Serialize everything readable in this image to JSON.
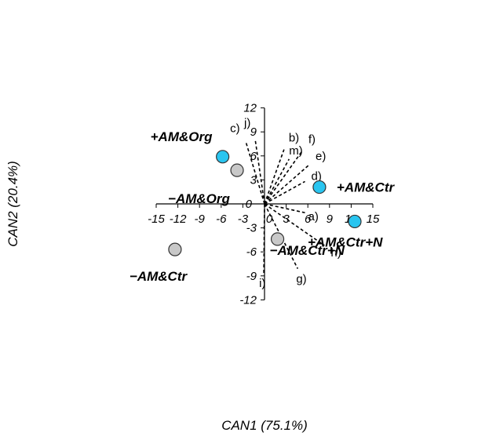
{
  "chart_data": {
    "type": "scatter",
    "xlabel": "CAN1 (75.1%)",
    "ylabel": "CAN2 (20.4%)",
    "xlim": [
      -15,
      15
    ],
    "ylim": [
      -12,
      12
    ],
    "xticks": [
      -15,
      -12,
      -9,
      -6,
      -3,
      0,
      3,
      6,
      9,
      12,
      15
    ],
    "yticks": [
      -12,
      -9,
      -6,
      -3,
      0,
      3,
      6,
      9,
      12
    ],
    "grid": false,
    "points": [
      {
        "label": "+AM&Org",
        "x": -5.8,
        "y": 5.9,
        "xerr": 0.4,
        "yerr": 0.3,
        "color": "#29c5f0"
      },
      {
        "label": "−AM&Org",
        "x": -3.8,
        "y": 4.2,
        "xerr": 0.5,
        "yerr": 0.6,
        "color": "#c8c8c8"
      },
      {
        "label": "+AM&Ctr",
        "x": 7.6,
        "y": 2.1,
        "xerr": 0.5,
        "yerr": 0.3,
        "color": "#29c5f0"
      },
      {
        "label": "+AM&Ctr+N",
        "x": 12.5,
        "y": -2.2,
        "xerr": 0.7,
        "yerr": 0.4,
        "color": "#29c5f0"
      },
      {
        "label": "−AM&Ctr+N",
        "x": 1.8,
        "y": -4.4,
        "xerr": 0.4,
        "yerr": 0.3,
        "color": "#c8c8c8"
      },
      {
        "label": "−AM&Ctr",
        "x": -12.4,
        "y": -5.7,
        "xerr": 0.4,
        "yerr": 0.7,
        "color": "#c8c8c8"
      }
    ],
    "vectors": [
      {
        "label": "a)",
        "x": 5.6,
        "y": -1.1
      },
      {
        "label": "b)",
        "x": 2.7,
        "y": 6.8
      },
      {
        "label": "c)",
        "x": -2.6,
        "y": 7.8
      },
      {
        "label": "d)",
        "x": 5.6,
        "y": 2.8
      },
      {
        "label": "e)",
        "x": 6.2,
        "y": 4.9
      },
      {
        "label": "f)",
        "x": 5.2,
        "y": 6.6
      },
      {
        "label": "g)",
        "x": 4.6,
        "y": -8.1
      },
      {
        "label": "h)",
        "x": 8.3,
        "y": -5.2
      },
      {
        "label": "i)",
        "x": -0.1,
        "y": -8.8
      },
      {
        "label": "j)",
        "x": -1.3,
        "y": 8.1
      },
      {
        "label": "m)",
        "x": 3.4,
        "y": 5.6
      }
    ]
  }
}
